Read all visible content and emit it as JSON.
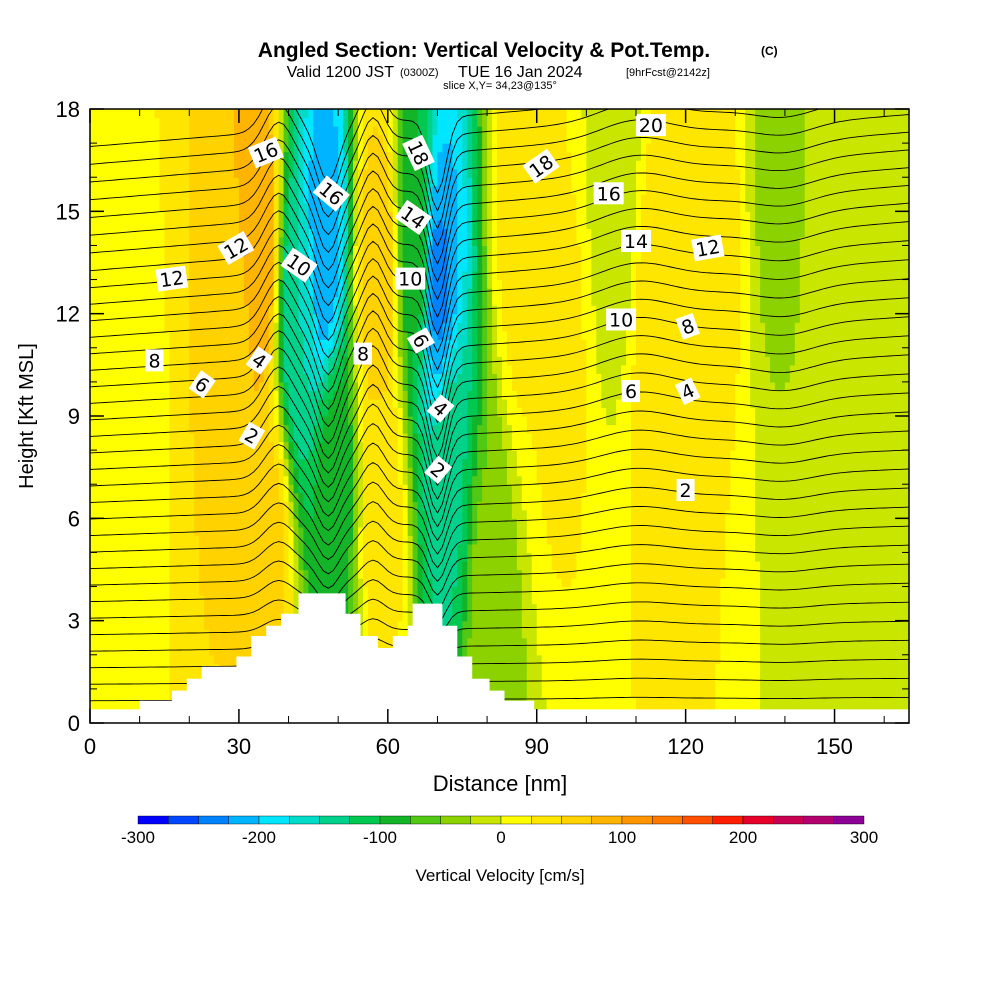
{
  "chart_data": {
    "type": "heatmap",
    "title": "Angled Section: Vertical Velocity & Pot.Temp.",
    "title_mark": "(C)",
    "valid_prefix": "Valid 1200 JST",
    "valid_utc": "(0300Z)",
    "valid_date": "TUE 16 Jan 2024",
    "forecast": "[9hrFcst@2142z]",
    "slice": "slice X,Y= 34,23@135°",
    "xlabel": "Distance [nm]",
    "ylabel": "Height [Kft MSL]",
    "xlim": [
      0,
      165
    ],
    "ylim": [
      0,
      18
    ],
    "x_ticks": [
      {
        "value": 0,
        "label": "0"
      },
      {
        "value": 30,
        "label": "30"
      },
      {
        "value": 60,
        "label": "60"
      },
      {
        "value": 90,
        "label": "90"
      },
      {
        "value": 120,
        "label": "120"
      },
      {
        "value": 150,
        "label": "150"
      }
    ],
    "y_ticks": [
      {
        "value": 0,
        "label": "0"
      },
      {
        "value": 3,
        "label": "3"
      },
      {
        "value": 6,
        "label": "6"
      },
      {
        "value": 9,
        "label": "9"
      },
      {
        "value": 12,
        "label": "12"
      },
      {
        "value": 15,
        "label": "15"
      },
      {
        "value": 18,
        "label": "18"
      }
    ],
    "colorbar": {
      "label": "Vertical Velocity [cm/s]",
      "min": -300,
      "max": 300,
      "step": 25,
      "tick_labels": [
        {
          "value": -300,
          "label": "-300"
        },
        {
          "value": -200,
          "label": "-200"
        },
        {
          "value": -100,
          "label": "-100"
        },
        {
          "value": 0,
          "label": "0"
        },
        {
          "value": 100,
          "label": "100"
        },
        {
          "value": 200,
          "label": "200"
        },
        {
          "value": 300,
          "label": "300"
        }
      ],
      "colors": [
        "#0000ff",
        "#0046ff",
        "#0082ff",
        "#00b4ff",
        "#00e6ff",
        "#00dcc8",
        "#00d28c",
        "#00c850",
        "#14b428",
        "#50c814",
        "#8cd200",
        "#c8e600",
        "#ffff00",
        "#ffe600",
        "#ffd200",
        "#ffb400",
        "#ff9600",
        "#ff7800",
        "#ff5000",
        "#ff1e00",
        "#e6002a",
        "#c80050",
        "#b4006e",
        "#8c0096"
      ]
    },
    "velocity_features": [
      {
        "x": 8,
        "z": 8,
        "value": 20
      },
      {
        "x": 29,
        "z": 11,
        "value": 60
      },
      {
        "x": 34,
        "z": 14,
        "value": 100
      },
      {
        "x": 36,
        "z": 5,
        "value": 60
      },
      {
        "x": 42,
        "z": 12,
        "value": -150
      },
      {
        "x": 47,
        "z": 14,
        "value": -220
      },
      {
        "x": 49,
        "z": 7,
        "value": -90
      },
      {
        "x": 58,
        "z": 13,
        "value": 70
      },
      {
        "x": 59,
        "z": 6,
        "value": 40
      },
      {
        "x": 66,
        "z": 14,
        "value": -90
      },
      {
        "x": 70,
        "z": 13,
        "value": -230
      },
      {
        "x": 72,
        "z": 7,
        "value": -130
      },
      {
        "x": 80,
        "z": 3,
        "value": -40
      },
      {
        "x": 87,
        "z": 15,
        "value": 40
      },
      {
        "x": 95,
        "z": 11,
        "value": 30
      },
      {
        "x": 106,
        "z": 16,
        "value": -20
      },
      {
        "x": 114,
        "z": 12,
        "value": 40
      },
      {
        "x": 118,
        "z": 8,
        "value": 30
      },
      {
        "x": 127,
        "z": 14,
        "value": 30
      },
      {
        "x": 138,
        "z": 16,
        "value": -30
      },
      {
        "x": 150,
        "z": 15,
        "value": -20
      },
      {
        "x": 150,
        "z": 4,
        "value": -8
      }
    ],
    "theta_isentropes": {
      "spacing_kft": 0.52,
      "count": 34,
      "line_color": "#000000",
      "labels": [
        {
          "label": "16",
          "x": 35.5,
          "z": 16.7,
          "angle": -22
        },
        {
          "label": "12",
          "x": 29.5,
          "z": 13.9,
          "angle": -30
        },
        {
          "label": "12",
          "x": 16.5,
          "z": 13.0,
          "angle": -8
        },
        {
          "label": "8",
          "x": 13.0,
          "z": 10.6,
          "angle": 0
        },
        {
          "label": "6",
          "x": 22.5,
          "z": 9.9,
          "angle": 35
        },
        {
          "label": "4",
          "x": 34.0,
          "z": 10.6,
          "angle": 35
        },
        {
          "label": "2",
          "x": 32.5,
          "z": 8.4,
          "angle": 30
        },
        {
          "label": "10",
          "x": 42.0,
          "z": 13.4,
          "angle": 35
        },
        {
          "label": "16",
          "x": 48.5,
          "z": 15.5,
          "angle": 40
        },
        {
          "label": "8",
          "x": 55.0,
          "z": 10.8,
          "angle": 0
        },
        {
          "label": "18",
          "x": 66.0,
          "z": 16.7,
          "angle": 65
        },
        {
          "label": "14",
          "x": 65.0,
          "z": 14.8,
          "angle": 35
        },
        {
          "label": "10",
          "x": 64.5,
          "z": 13.0,
          "angle": 0
        },
        {
          "label": "6",
          "x": 66.5,
          "z": 11.2,
          "angle": 60
        },
        {
          "label": "4",
          "x": 70.5,
          "z": 9.2,
          "angle": 40
        },
        {
          "label": "2",
          "x": 70.0,
          "z": 7.4,
          "angle": 40
        },
        {
          "label": "20",
          "x": 113.0,
          "z": 17.5,
          "angle": 0
        },
        {
          "label": "18",
          "x": 91.0,
          "z": 16.3,
          "angle": -35
        },
        {
          "label": "16",
          "x": 104.5,
          "z": 15.5,
          "angle": 0
        },
        {
          "label": "14",
          "x": 110.0,
          "z": 14.1,
          "angle": 0
        },
        {
          "label": "12",
          "x": 124.5,
          "z": 13.9,
          "angle": -10
        },
        {
          "label": "10",
          "x": 107.0,
          "z": 11.8,
          "angle": 0
        },
        {
          "label": "8",
          "x": 120.5,
          "z": 11.6,
          "angle": -20
        },
        {
          "label": "6",
          "x": 109.0,
          "z": 9.7,
          "angle": 0
        },
        {
          "label": "4",
          "x": 120.5,
          "z": 9.7,
          "angle": -25
        },
        {
          "label": "2",
          "x": 120.0,
          "z": 6.8,
          "angle": 0
        }
      ]
    },
    "terrain": [
      {
        "x": 0,
        "z": 0.4
      },
      {
        "x": 10,
        "z": 0.4
      },
      {
        "x": 10,
        "z": 0.65
      },
      {
        "x": 16.5,
        "z": 0.65
      },
      {
        "x": 16.5,
        "z": 0.95
      },
      {
        "x": 19.5,
        "z": 0.95
      },
      {
        "x": 19.5,
        "z": 1.3
      },
      {
        "x": 22.5,
        "z": 1.3
      },
      {
        "x": 22.5,
        "z": 1.65
      },
      {
        "x": 29.5,
        "z": 1.65
      },
      {
        "x": 29.5,
        "z": 1.95
      },
      {
        "x": 32.5,
        "z": 1.95
      },
      {
        "x": 32.5,
        "z": 2.55
      },
      {
        "x": 35.5,
        "z": 2.55
      },
      {
        "x": 35.5,
        "z": 2.85
      },
      {
        "x": 38.5,
        "z": 2.85
      },
      {
        "x": 38.5,
        "z": 3.2
      },
      {
        "x": 42.0,
        "z": 3.2
      },
      {
        "x": 42.0,
        "z": 3.8
      },
      {
        "x": 51.5,
        "z": 3.8
      },
      {
        "x": 51.5,
        "z": 3.2
      },
      {
        "x": 54.5,
        "z": 3.2
      },
      {
        "x": 54.5,
        "z": 2.55
      },
      {
        "x": 58.0,
        "z": 2.55
      },
      {
        "x": 58.0,
        "z": 2.2
      },
      {
        "x": 61.0,
        "z": 2.2
      },
      {
        "x": 61.0,
        "z": 2.55
      },
      {
        "x": 64.0,
        "z": 2.55
      },
      {
        "x": 64.0,
        "z": 2.85
      },
      {
        "x": 65.0,
        "z": 2.85
      },
      {
        "x": 65.0,
        "z": 3.5
      },
      {
        "x": 71.0,
        "z": 3.5
      },
      {
        "x": 71.0,
        "z": 2.85
      },
      {
        "x": 74.0,
        "z": 2.85
      },
      {
        "x": 74.0,
        "z": 1.95
      },
      {
        "x": 77.0,
        "z": 1.95
      },
      {
        "x": 77.0,
        "z": 1.3
      },
      {
        "x": 80.5,
        "z": 1.3
      },
      {
        "x": 80.5,
        "z": 0.95
      },
      {
        "x": 83.5,
        "z": 0.95
      },
      {
        "x": 83.5,
        "z": 0.65
      },
      {
        "x": 89.5,
        "z": 0.65
      },
      {
        "x": 89.5,
        "z": 0.4
      },
      {
        "x": 165,
        "z": 0.4
      }
    ],
    "grid": false,
    "legend": "colorbar-bottom"
  }
}
